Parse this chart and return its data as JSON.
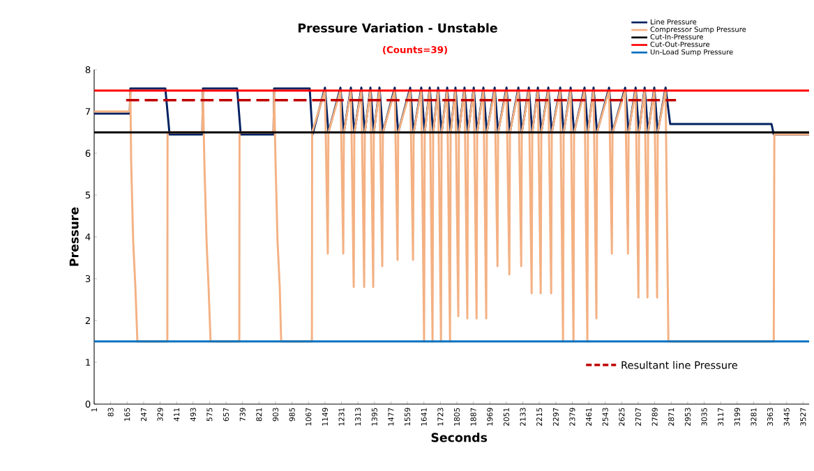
{
  "chart_data": {
    "type": "line",
    "title": "Pressure Variation - Unstable",
    "subtitle": "(Counts=39)",
    "xlabel": "Seconds",
    "ylabel": "Pressure",
    "xlim": [
      1,
      3557
    ],
    "ylim": [
      0,
      8
    ],
    "yticks": [
      0,
      1,
      2,
      3,
      4,
      5,
      6,
      7,
      8
    ],
    "xticks": [
      1,
      83,
      165,
      247,
      329,
      411,
      493,
      575,
      657,
      739,
      821,
      903,
      985,
      1067,
      1149,
      1231,
      1313,
      1395,
      1477,
      1559,
      1641,
      1723,
      1805,
      1887,
      1969,
      2051,
      2133,
      2215,
      2297,
      2379,
      2461,
      2543,
      2625,
      2707,
      2789,
      2871,
      2953,
      3035,
      3117,
      3199,
      3281,
      3363,
      3445,
      3527
    ],
    "grid": false,
    "legend": "top right",
    "marker": "none",
    "series": [
      {
        "name": "Line Pressure",
        "color": "#002060",
        "x": [
          1,
          178,
          181,
          355,
          376,
          539,
          542,
          712,
          730,
          893,
          896,
          1073,
          1087,
          1149,
          1166,
          1226,
          1243,
          1278,
          1295,
          1330,
          1347,
          1375,
          1392,
          1420,
          1437,
          1496,
          1513,
          1573,
          1590,
          1628,
          1645,
          1670,
          1687,
          1712,
          1729,
          1757,
          1774,
          1798,
          1815,
          1843,
          1860,
          1889,
          1906,
          1937,
          1954,
          1993,
          2010,
          2052,
          2069,
          2111,
          2128,
          2163,
          2180,
          2208,
          2225,
          2260,
          2277,
          2319,
          2336,
          2371,
          2388,
          2440,
          2457,
          2485,
          2502,
          2562,
          2579,
          2642,
          2659,
          2694,
          2711,
          2739,
          2756,
          2787,
          2804,
          2843,
          2866,
          3370,
          3381,
          3557
        ],
        "values": [
          6.95,
          6.95,
          7.55,
          7.55,
          6.45,
          6.45,
          7.55,
          7.55,
          6.45,
          6.45,
          7.55,
          7.55,
          6.45,
          7.57,
          6.5,
          7.57,
          6.5,
          7.57,
          6.5,
          7.57,
          6.5,
          7.57,
          6.5,
          7.57,
          6.5,
          7.57,
          6.5,
          7.57,
          6.5,
          7.57,
          6.5,
          7.57,
          6.5,
          7.57,
          6.5,
          7.57,
          6.5,
          7.57,
          6.5,
          7.57,
          6.5,
          7.57,
          6.5,
          7.57,
          6.5,
          7.57,
          6.5,
          7.57,
          6.5,
          7.57,
          6.5,
          7.57,
          6.5,
          7.57,
          6.5,
          7.57,
          6.5,
          7.57,
          6.5,
          7.57,
          6.5,
          7.57,
          6.5,
          7.57,
          6.5,
          7.57,
          6.5,
          7.57,
          6.5,
          7.57,
          6.5,
          7.57,
          6.5,
          7.57,
          6.5,
          7.57,
          6.7,
          6.7,
          6.45,
          6.45
        ]
      },
      {
        "name": "Compressor Sump Pressure",
        "color": "#f4b183",
        "x": [
          1,
          178,
          181,
          185,
          195,
          206,
          216,
          365,
          366,
          539,
          542,
          549,
          560,
          570,
          580,
          723,
          724,
          893,
          896,
          903,
          913,
          924,
          931,
          1084,
          1085,
          1149,
          1163,
          1166,
          1226,
          1240,
          1243,
          1278,
          1292,
          1295,
          1330,
          1344,
          1347,
          1375,
          1389,
          1392,
          1420,
          1434,
          1437,
          1496,
          1510,
          1513,
          1573,
          1587,
          1590,
          1628,
          1642,
          1645,
          1670,
          1684,
          1687,
          1712,
          1726,
          1729,
          1757,
          1771,
          1774,
          1798,
          1812,
          1815,
          1843,
          1857,
          1860,
          1889,
          1903,
          1906,
          1937,
          1951,
          1954,
          1993,
          2007,
          2010,
          2052,
          2066,
          2069,
          2111,
          2125,
          2128,
          2163,
          2177,
          2180,
          2208,
          2222,
          2225,
          2260,
          2274,
          2277,
          2319,
          2333,
          2336,
          2371,
          2385,
          2388,
          2440,
          2454,
          2457,
          2485,
          2499,
          2502,
          2562,
          2576,
          2579,
          2642,
          2656,
          2659,
          2694,
          2708,
          2711,
          2739,
          2753,
          2756,
          2787,
          2801,
          2804,
          2843,
          2857,
          3381,
          3384,
          3557
        ],
        "values": [
          7,
          7,
          7.5,
          5.8,
          3.9,
          2.8,
          1.5,
          1.5,
          6.5,
          6.5,
          7.5,
          5.8,
          3.9,
          2.8,
          1.5,
          1.5,
          6.5,
          6.5,
          7.5,
          5.8,
          3.9,
          2.8,
          1.5,
          1.5,
          6.5,
          7.5,
          3.6,
          6.5,
          7.5,
          3.6,
          6.5,
          7.5,
          2.8,
          6.5,
          7.5,
          2.8,
          6.5,
          7.5,
          2.8,
          6.5,
          7.5,
          3.3,
          6.5,
          7.5,
          3.45,
          6.5,
          7.5,
          3.45,
          6.5,
          7.5,
          1.5,
          6.5,
          7.5,
          1.5,
          6.5,
          7.5,
          1.5,
          6.5,
          7.5,
          1.5,
          6.5,
          7.5,
          2.1,
          6.5,
          7.5,
          2.05,
          6.5,
          7.5,
          2.05,
          6.5,
          7.5,
          2.05,
          6.5,
          7.5,
          3.3,
          6.5,
          7.5,
          3.1,
          6.5,
          7.5,
          3.3,
          6.5,
          7.5,
          2.65,
          6.5,
          7.5,
          2.65,
          6.5,
          7.5,
          2.65,
          6.5,
          7.5,
          1.5,
          6.5,
          7.5,
          1.5,
          6.5,
          7.5,
          1.5,
          6.5,
          7.5,
          2.05,
          6.5,
          7.5,
          3.6,
          6.5,
          7.5,
          3.6,
          6.5,
          7.5,
          2.55,
          6.5,
          7.5,
          2.55,
          6.5,
          7.5,
          2.55,
          6.5,
          7.5,
          1.5,
          1.5,
          6.45,
          6.45
        ]
      },
      {
        "name": "Cut-In-Pressure",
        "color": "#000000",
        "x": [
          1,
          3557
        ],
        "values": [
          6.5,
          6.5
        ]
      },
      {
        "name": "Cut-Out-Pressure",
        "color": "#ff0000",
        "x": [
          1,
          3557
        ],
        "values": [
          7.5,
          7.5
        ]
      },
      {
        "name": "Un-Load Sump Pressure",
        "color": "#0070c0",
        "x": [
          1,
          3557
        ],
        "values": [
          1.5,
          1.5
        ]
      },
      {
        "name": "Resultant line Pressure",
        "color": "#c00000",
        "line_style": "dashed",
        "x": [
          160,
          2895
        ],
        "values": [
          7.27,
          7.27
        ]
      }
    ]
  }
}
